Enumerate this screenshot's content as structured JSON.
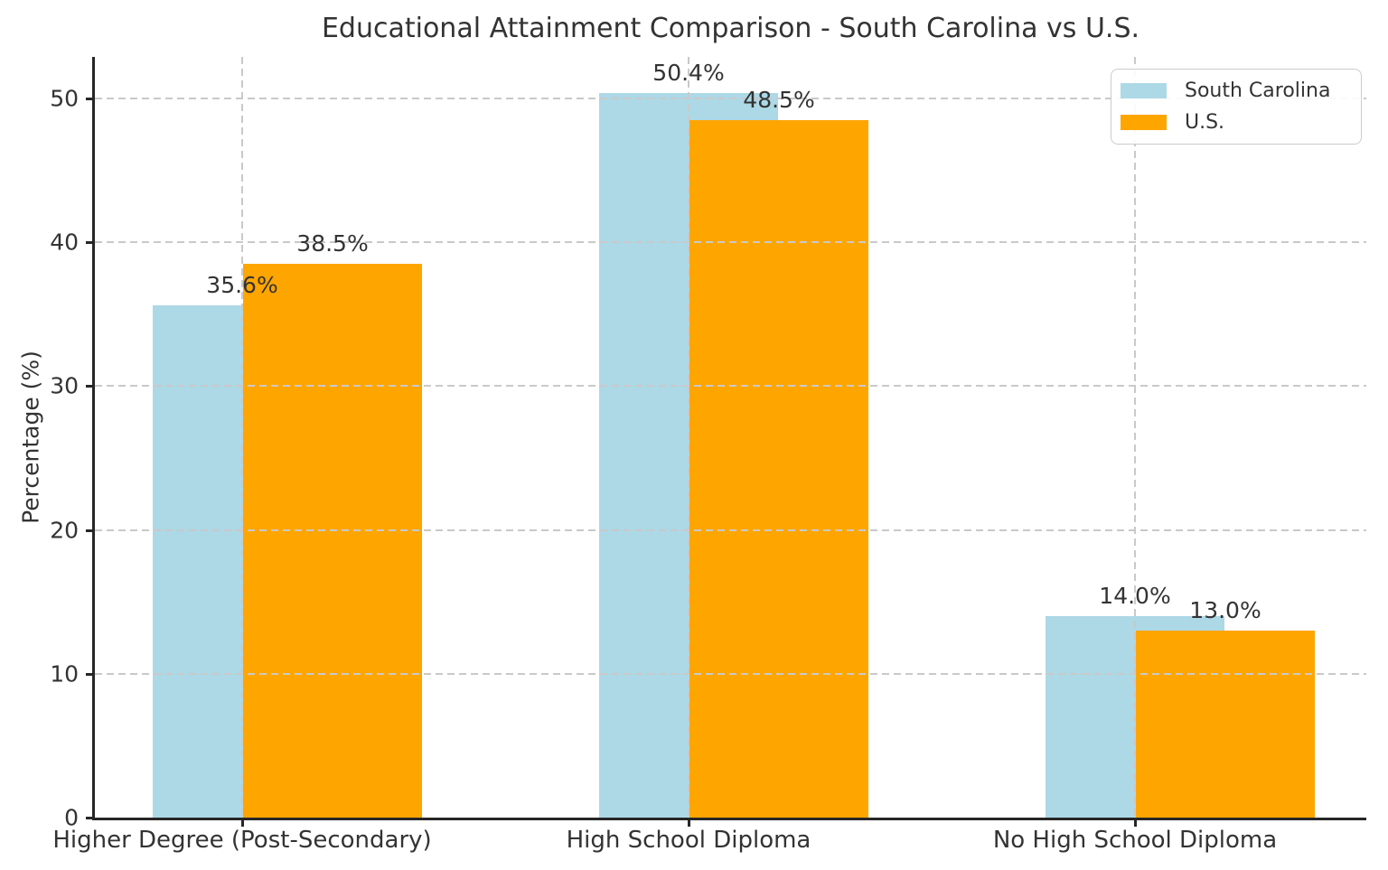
{
  "chart_data": {
    "type": "bar",
    "title": "Educational Attainment Comparison - South Carolina vs U.S.",
    "categories": [
      "Higher Degree (Post-Secondary)",
      "High School Diploma",
      "No High School Diploma"
    ],
    "series": [
      {
        "name": "South Carolina",
        "color": "#ADD8E6",
        "values": [
          35.6,
          50.4,
          14.0
        ],
        "value_labels": [
          "35.6%",
          "50.4%",
          "14.0%"
        ]
      },
      {
        "name": "U.S.",
        "color": "#FFA500",
        "values": [
          38.5,
          48.5,
          13.0
        ],
        "value_labels": [
          "38.5%",
          "48.5%",
          "13.0%"
        ]
      }
    ],
    "xlabel": "",
    "ylabel": "Percentage (%)",
    "ylim": [
      0,
      52.9
    ],
    "yticks": [
      0,
      10,
      20,
      30,
      40,
      50
    ],
    "grid": "dashed, both axes, drawn over bars",
    "bar_layout": "overlapping: U.S. bar offset right and drawn over South Carolina bar",
    "legend_position": "upper-right",
    "text_color": "#333333",
    "grid_color": "#c9c9c9"
  }
}
